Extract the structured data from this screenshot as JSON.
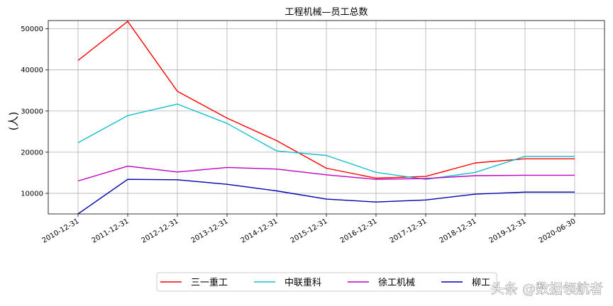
{
  "chart_data": {
    "type": "line",
    "title": "工程机械—员工总数",
    "xlabel": "",
    "ylabel": "(人)",
    "ylim": [
      5000,
      52000
    ],
    "y_ticks": [
      10000,
      20000,
      30000,
      40000,
      50000
    ],
    "grid": true,
    "legend_position": "bottom-center",
    "categories": [
      "2010-12-31",
      "2011-12-31",
      "2012-12-31",
      "2013-12-31",
      "2014-12-31",
      "2015-12-31",
      "2016-12-31",
      "2017-12-31",
      "2018-12-31",
      "2019-12-31",
      "2020-06-30"
    ],
    "series": [
      {
        "name": "三一重工",
        "color": "#ff0000",
        "values": [
          42300,
          51800,
          34800,
          28300,
          22800,
          16100,
          13700,
          14100,
          17400,
          18400,
          18400
        ]
      },
      {
        "name": "中联重科",
        "color": "#17becf",
        "values": [
          22300,
          28900,
          31700,
          27000,
          20300,
          19200,
          15100,
          13400,
          15100,
          19000,
          19000
        ]
      },
      {
        "name": "徐工机械",
        "color": "#bf00bf",
        "values": [
          13000,
          16600,
          15200,
          16300,
          15900,
          14500,
          13400,
          13600,
          14300,
          14400,
          14400
        ]
      },
      {
        "name": "柳工",
        "color": "#0000b0",
        "values": [
          5000,
          13400,
          13300,
          12200,
          10600,
          8600,
          7900,
          8400,
          9800,
          10300,
          10300
        ]
      }
    ]
  },
  "watermark": "头条 @数据领航者"
}
